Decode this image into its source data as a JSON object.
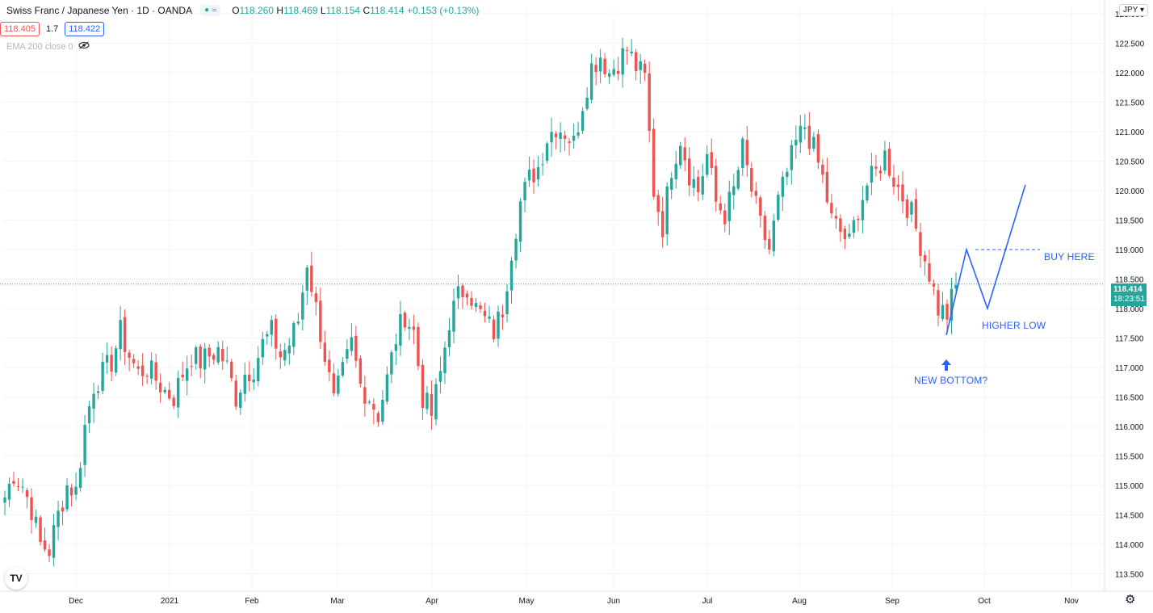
{
  "header": {
    "symbol": "Swiss Franc / Japanese Yen · 1D · OANDA",
    "ohlc": {
      "o_label": "O",
      "o": "118.260",
      "h_label": "H",
      "h": "118.469",
      "l_label": "L",
      "l": "118.154",
      "c_label": "C",
      "c": "118.414",
      "chg": "+0.153 (+0.13%)"
    },
    "bid": "118.405",
    "spread": "1.7",
    "ask": "118.422",
    "indicator": "EMA 200 close 0",
    "currency": "JPY"
  },
  "price_tag": {
    "price": "118.414",
    "countdown": "18:23:51"
  },
  "annotations": {
    "buy_here": "BUY HERE",
    "higher_low": "HIGHER LOW",
    "new_bottom": "NEW BOTTOM?"
  },
  "colors": {
    "up": "#26a69a",
    "down": "#ef5350",
    "annotation": "#2962ff",
    "grid": "#f0f3fa"
  },
  "chart_data": {
    "type": "candlestick",
    "title": "Swiss Franc / Japanese Yen · 1D · OANDA",
    "ylim": [
      113.3,
      123.1
    ],
    "y_ticks": [
      "113.500",
      "114.000",
      "114.500",
      "115.000",
      "115.500",
      "116.000",
      "116.500",
      "117.000",
      "117.500",
      "118.000",
      "118.500",
      "119.000",
      "119.500",
      "120.000",
      "120.500",
      "121.000",
      "121.500",
      "122.000",
      "122.500",
      "123.000"
    ],
    "x_ticks": [
      "Dec",
      "2021",
      "Feb",
      "Mar",
      "Apr",
      "May",
      "Jun",
      "Jul",
      "Aug",
      "Sep",
      "Oct",
      "Nov"
    ],
    "last_price": 118.414,
    "close_path": [
      114.8,
      115.2,
      115.0,
      114.6,
      114.0,
      113.9,
      114.5,
      115.0,
      114.9,
      116.0,
      116.7,
      116.9,
      117.1,
      117.6,
      117.2,
      116.9,
      117.0,
      116.8,
      116.6,
      116.5,
      116.9,
      117.2,
      117.1,
      117.2,
      117.3,
      117.0,
      116.5,
      116.9,
      117.0,
      117.4,
      117.6,
      117.2,
      117.4,
      117.8,
      118.8,
      118.0,
      117.2,
      116.4,
      116.9,
      117.4,
      116.7,
      116.5,
      116.2,
      116.8,
      117.5,
      117.9,
      117.6,
      116.5,
      116.2,
      116.9,
      117.8,
      118.2,
      118.4,
      118.0,
      117.8,
      117.6,
      118.0,
      119.0,
      119.8,
      120.2,
      120.4,
      120.9,
      121.1,
      121.0,
      120.8,
      121.5,
      122.1,
      122.3,
      122.0,
      122.2,
      122.4,
      122.1,
      121.9,
      120.0,
      119.4,
      120.4,
      120.9,
      120.3,
      120.0,
      120.6,
      119.8,
      119.6,
      120.0,
      120.7,
      120.0,
      119.4,
      119.0,
      119.8,
      120.3,
      120.8,
      121.1,
      120.7,
      120.2,
      119.5,
      119.3,
      119.1,
      119.7,
      120.1,
      120.3,
      120.6,
      120.2,
      119.9,
      119.6,
      119.1,
      118.6,
      118.0,
      117.9,
      118.4
    ],
    "projection": {
      "points": [
        117.55,
        119.0,
        118.0,
        120.1
      ],
      "buy_level": 119.0
    },
    "annotations": [
      "BUY HERE",
      "HIGHER LOW",
      "NEW BOTTOM?"
    ]
  }
}
